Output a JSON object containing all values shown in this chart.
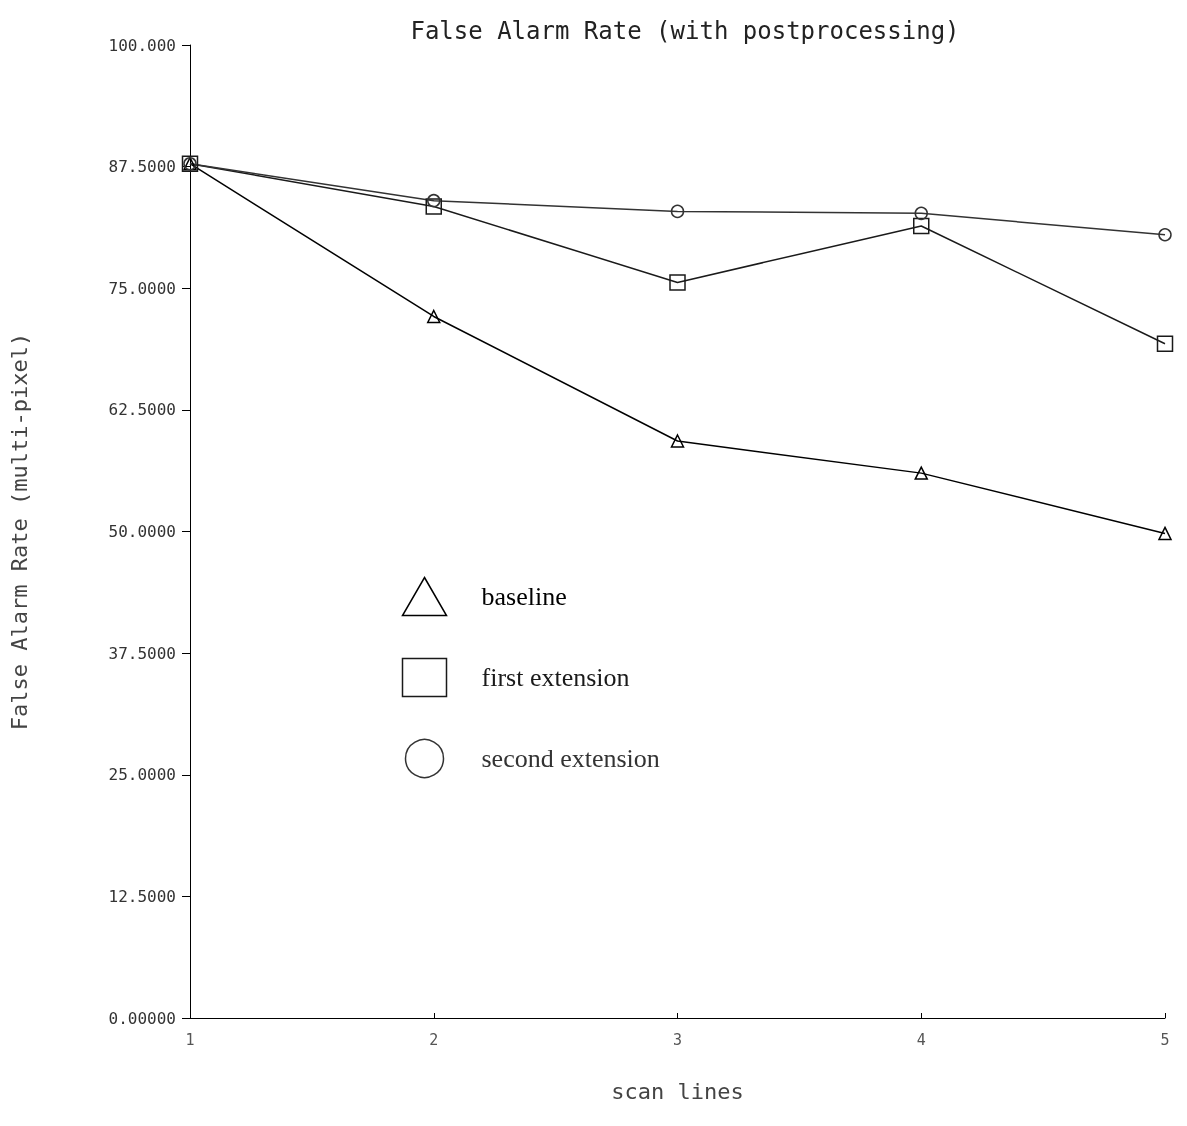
{
  "chart_data": {
    "type": "line",
    "title": "False Alarm Rate (with postprocessing)",
    "xlabel": "scan lines",
    "ylabel": "False Alarm Rate (multi-pixel)",
    "x": [
      1,
      2,
      3,
      4,
      5
    ],
    "series": [
      {
        "name": "baseline",
        "color": "#000000",
        "marker": "triangle",
        "values": [
          87.8,
          72.1,
          59.3,
          56.0,
          49.8
        ]
      },
      {
        "name": "first extension",
        "color": "#1a1a1a",
        "marker": "square",
        "values": [
          87.8,
          83.4,
          75.6,
          81.4,
          69.3
        ]
      },
      {
        "name": "second extension",
        "color": "#333333",
        "marker": "circle",
        "values": [
          87.8,
          84.0,
          82.9,
          82.7,
          80.5
        ]
      }
    ],
    "xlim": [
      1,
      5
    ],
    "xticks": [
      1,
      2,
      3,
      4,
      5
    ],
    "ylim": [
      0,
      100
    ],
    "yticks": [
      {
        "value": 0,
        "label": "0.00000"
      },
      {
        "value": 12.5,
        "label": "12.5000"
      },
      {
        "value": 25,
        "label": "25.0000"
      },
      {
        "value": 37.5,
        "label": "37.5000"
      },
      {
        "value": 50,
        "label": "50.0000"
      },
      {
        "value": 62.5,
        "label": "62.5000"
      },
      {
        "value": 75,
        "label": "75.0000"
      },
      {
        "value": 87.5,
        "label": "87.5000"
      },
      {
        "value": 100,
        "label": "100.000"
      }
    ],
    "grid": false,
    "legend": "left",
    "line_style": "solid"
  }
}
